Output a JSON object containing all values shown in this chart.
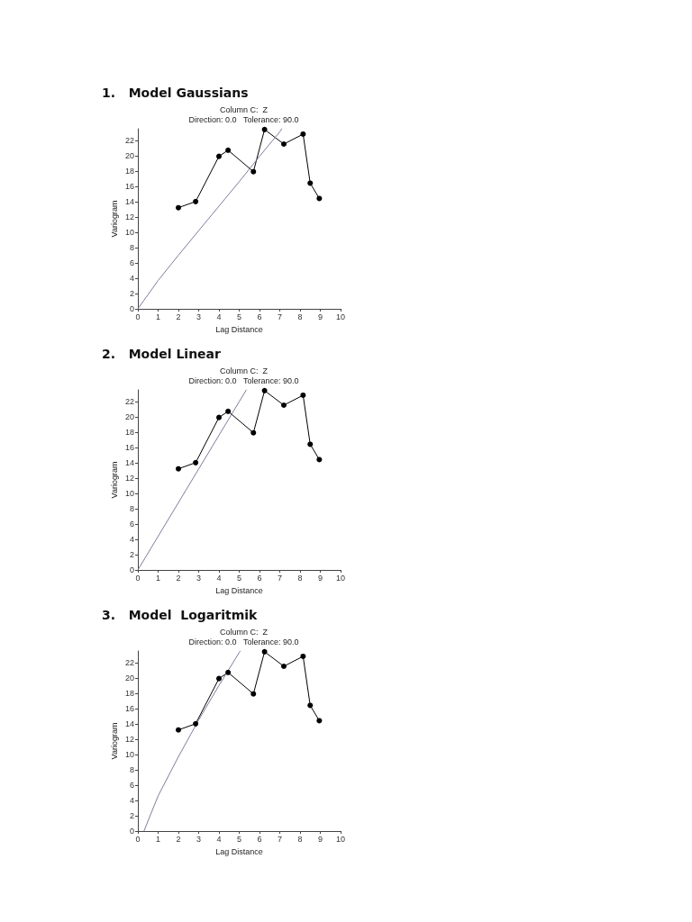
{
  "chart_data": [
    {
      "type": "line",
      "title": "1.   Model Gaussians",
      "subtitle": "Column C:  Z\nDirection: 0.0   Tolerance: 90.0",
      "xlabel": "Lag Distance",
      "ylabel": "Variogram",
      "xlim": [
        0,
        10
      ],
      "xticks": [
        0,
        1,
        2,
        3,
        4,
        5,
        6,
        7,
        8,
        9,
        10
      ],
      "ylim": [
        0,
        23.5
      ],
      "yticks": [
        0,
        2,
        4,
        6,
        8,
        10,
        12,
        14,
        16,
        18,
        20,
        22
      ],
      "grid": false,
      "series": [
        {
          "color": "#000000",
          "marker": "circle",
          "x": [
            2.0,
            2.85,
            4.0,
            4.45,
            5.7,
            6.25,
            7.2,
            8.15,
            8.5,
            8.95
          ],
          "values": [
            13.2,
            14.0,
            19.9,
            20.7,
            17.9,
            23.4,
            21.5,
            22.8,
            16.4,
            14.4
          ]
        },
        {
          "color": "#7a7f9e",
          "marker": "none",
          "x": [
            0,
            1,
            2,
            3,
            4,
            5,
            6,
            7,
            7.1
          ],
          "values": [
            0,
            3.7,
            7.0,
            10.2,
            13.4,
            16.6,
            19.9,
            23.1,
            23.5
          ]
        }
      ]
    },
    {
      "type": "line",
      "title": "2.   Model Linear",
      "subtitle": "Column C:  Z\nDirection: 0.0   Tolerance: 90.0",
      "xlabel": "Lag Distance",
      "ylabel": "Variogram",
      "xlim": [
        0,
        10
      ],
      "xticks": [
        0,
        1,
        2,
        3,
        4,
        5,
        6,
        7,
        8,
        9,
        10
      ],
      "ylim": [
        0,
        23.5
      ],
      "yticks": [
        0,
        2,
        4,
        6,
        8,
        10,
        12,
        14,
        16,
        18,
        20,
        22
      ],
      "grid": false,
      "series": [
        {
          "color": "#000000",
          "marker": "circle",
          "x": [
            2.0,
            2.85,
            4.0,
            4.45,
            5.7,
            6.25,
            7.2,
            8.15,
            8.5,
            8.95
          ],
          "values": [
            13.2,
            14.0,
            19.9,
            20.7,
            17.9,
            23.4,
            21.5,
            22.8,
            16.4,
            14.4
          ]
        },
        {
          "color": "#7a7f9e",
          "marker": "none",
          "x": [
            0,
            5.35
          ],
          "values": [
            0,
            23.5
          ]
        }
      ]
    },
    {
      "type": "line",
      "title": "3.   Model  Logaritmik",
      "subtitle": "Column C:  Z\nDirection: 0.0   Tolerance: 90.0",
      "xlabel": "Lag Distance",
      "ylabel": "Variogram",
      "xlim": [
        0,
        10
      ],
      "xticks": [
        0,
        1,
        2,
        3,
        4,
        5,
        6,
        7,
        8,
        9,
        10
      ],
      "ylim": [
        0,
        23.5
      ],
      "yticks": [
        0,
        2,
        4,
        6,
        8,
        10,
        12,
        14,
        16,
        18,
        20,
        22
      ],
      "grid": false,
      "series": [
        {
          "color": "#000000",
          "marker": "circle",
          "x": [
            2.0,
            2.85,
            4.0,
            4.45,
            5.7,
            6.25,
            7.2,
            8.15,
            8.5,
            8.95
          ],
          "values": [
            13.2,
            14.0,
            19.9,
            20.7,
            17.9,
            23.4,
            21.5,
            22.8,
            16.4,
            14.4
          ]
        },
        {
          "color": "#7a7f9e",
          "marker": "none",
          "x": [
            0.3,
            1,
            2,
            3,
            4,
            5,
            5.05
          ],
          "values": [
            0,
            4.6,
            9.7,
            14.5,
            19.0,
            23.3,
            23.5
          ]
        }
      ]
    }
  ]
}
